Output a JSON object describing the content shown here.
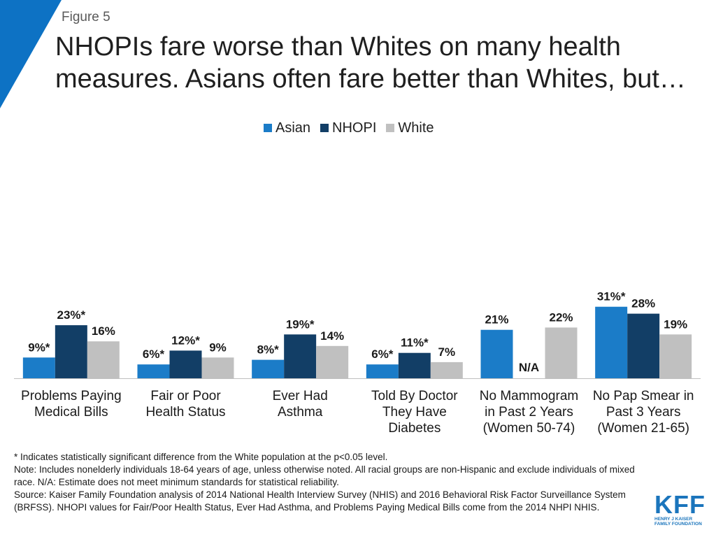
{
  "figure_label": "Figure 5",
  "title": "NHOPIs fare worse than Whites on many health measures. Asians often fare better than Whites, but…",
  "colors": {
    "accent": "#0d72c4",
    "asian": "#1b7cc8",
    "nhopi": "#123e66",
    "white": "#c0c0c0"
  },
  "chart_data": {
    "type": "bar",
    "title": "",
    "xlabel": "",
    "ylabel": "",
    "ylim": [
      0,
      70
    ],
    "legend_position": "top-center",
    "categories": [
      [
        "Problems Paying",
        "Medical Bills"
      ],
      [
        "Fair or Poor",
        "Health Status"
      ],
      [
        "Ever Had",
        "Asthma"
      ],
      [
        "Told By Doctor",
        "They Have",
        "Diabetes"
      ],
      [
        "No Mammogram",
        "in Past 2 Years",
        "(Women 50-74)"
      ],
      [
        "No Pap Smear in",
        "Past 3 Years",
        "(Women 21-65)"
      ]
    ],
    "series": [
      {
        "name": "Asian",
        "color": "#1b7cc8",
        "values": [
          9,
          6,
          8,
          6,
          21,
          31
        ],
        "labels": [
          "9%*",
          "6%*",
          "8%*",
          "6%*",
          "21%",
          "31%*"
        ]
      },
      {
        "name": "NHOPI",
        "color": "#123e66",
        "values": [
          23,
          12,
          19,
          11,
          null,
          28
        ],
        "labels": [
          "23%*",
          "12%*",
          "19%*",
          "11%*",
          "N/A",
          "28%"
        ]
      },
      {
        "name": "White",
        "color": "#c0c0c0",
        "values": [
          16,
          9,
          14,
          7,
          22,
          19
        ],
        "labels": [
          "16%",
          "9%",
          "14%",
          "7%",
          "22%",
          "19%"
        ]
      }
    ]
  },
  "notes": [
    "* Indicates statistically significant difference from the White population at the p<0.05 level.",
    "Note: Includes nonelderly individuals 18-64 years of age, unless otherwise noted. All racial groups are non-Hispanic and exclude individuals of mixed race. N/A: Estimate does not meet minimum standards for statistical reliability.",
    "Source: Kaiser Family Foundation analysis of 2014 National Health Interview Survey (NHIS) and 2016 Behavioral Risk Factor Surveillance System (BRFSS). NHOPI values for Fair/Poor Health Status, Ever Had Asthma, and Problems Paying Medical Bills come from the 2014 NHPI NHIS."
  ],
  "logo": {
    "mark": "KFF",
    "line1": "HENRY J KAISER",
    "line2": "FAMILY FOUNDATION"
  }
}
